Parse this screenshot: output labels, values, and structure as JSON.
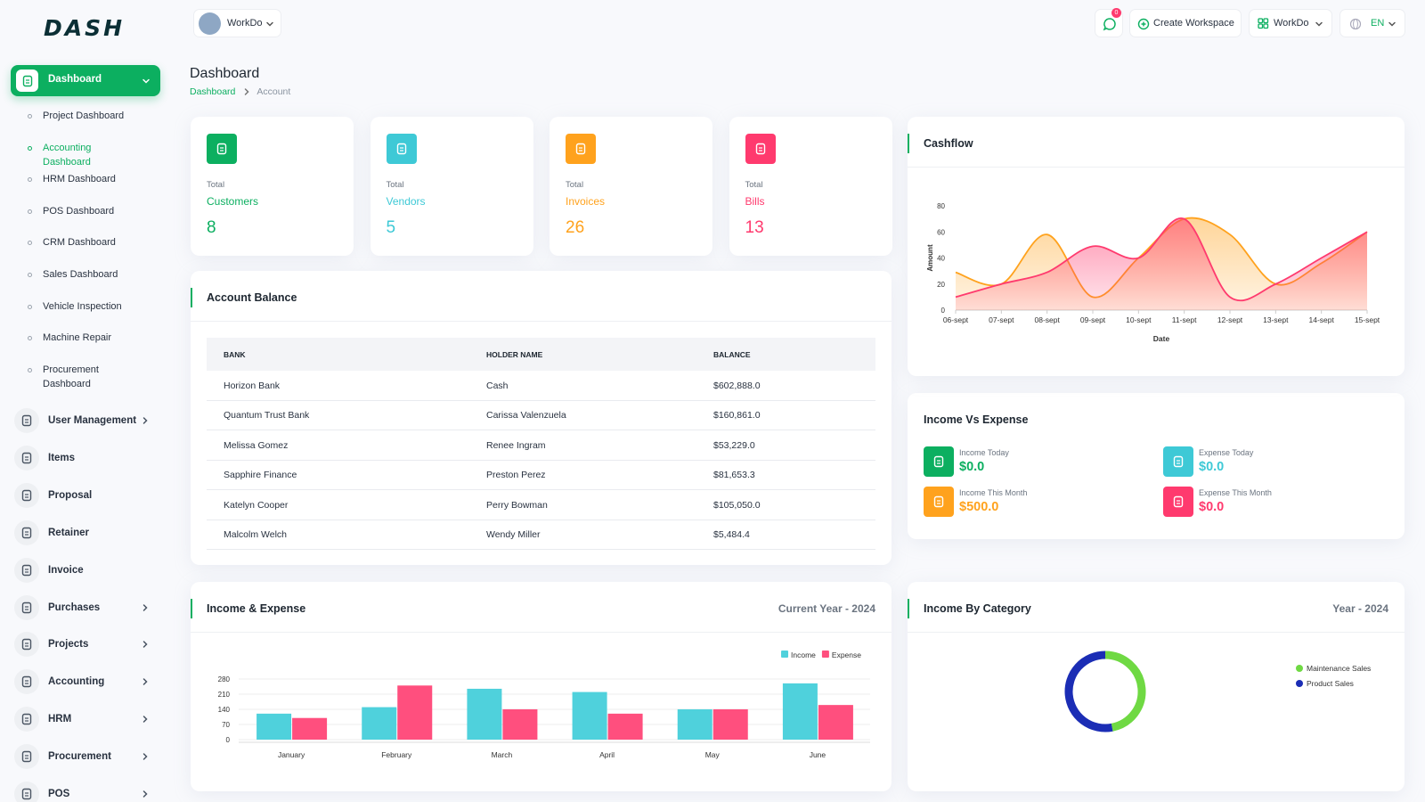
{
  "brand": "DASH",
  "header": {
    "workspace": "WorkDo",
    "notifications": 0,
    "create_workspace": "Create Workspace",
    "workspace_menu": "WorkDo",
    "language": "EN"
  },
  "sidebar": {
    "menu": [
      {
        "label": "Dashboard",
        "active": true,
        "expandable": true,
        "children": [
          {
            "label": "Project Dashboard"
          },
          {
            "label": "Accounting Dashboard",
            "active": true
          },
          {
            "label": "HRM Dashboard"
          },
          {
            "label": "POS Dashboard"
          },
          {
            "label": "CRM Dashboard"
          },
          {
            "label": "Sales Dashboard"
          },
          {
            "label": "Vehicle Inspection"
          },
          {
            "label": "Machine Repair"
          },
          {
            "label": "Procurement Dashboard"
          }
        ]
      },
      {
        "label": "User Management",
        "expandable": true
      },
      {
        "label": "Items"
      },
      {
        "label": "Proposal"
      },
      {
        "label": "Retainer"
      },
      {
        "label": "Invoice"
      },
      {
        "label": "Purchases",
        "expandable": true
      },
      {
        "label": "Projects",
        "expandable": true
      },
      {
        "label": "Accounting",
        "expandable": true
      },
      {
        "label": "HRM",
        "expandable": true
      },
      {
        "label": "Procurement",
        "expandable": true
      },
      {
        "label": "POS",
        "expandable": true
      }
    ]
  },
  "page": {
    "title": "Dashboard",
    "breadcrumb": [
      "Dashboard",
      "Account"
    ]
  },
  "stats": [
    {
      "caption": "Total",
      "label": "Customers",
      "value": 8,
      "color": "#0caf60"
    },
    {
      "caption": "Total",
      "label": "Vendors",
      "value": 5,
      "color": "#3ec9d6"
    },
    {
      "caption": "Total",
      "label": "Invoices",
      "value": 26,
      "color": "#ffa21d"
    },
    {
      "caption": "Total",
      "label": "Bills",
      "value": 13,
      "color": "#ff3a6e"
    }
  ],
  "account_balance": {
    "title": "Account Balance",
    "columns": [
      "BANK",
      "HOLDER NAME",
      "BALANCE"
    ],
    "rows": [
      [
        "Horizon Bank",
        "Cash",
        "$602,888.0"
      ],
      [
        "Quantum Trust Bank",
        "Carissa Valenzuela",
        "$160,861.0"
      ],
      [
        "Melissa Gomez",
        "Renee Ingram",
        "$53,229.0"
      ],
      [
        "Sapphire Finance",
        "Preston Perez",
        "$81,653.3"
      ],
      [
        "Katelyn Cooper",
        "Perry Bowman",
        "$105,050.0"
      ],
      [
        "Malcolm Welch",
        "Wendy Miller",
        "$5,484.4"
      ]
    ]
  },
  "income_vs_expense": {
    "title": "Income Vs Expense",
    "items": [
      {
        "label": "Income Today",
        "value": "$0.0",
        "color": "#0caf60"
      },
      {
        "label": "Expense Today",
        "value": "$0.0",
        "color": "#3ec9d6"
      },
      {
        "label": "Income This Month",
        "value": "$500.0",
        "color": "#ffa21d"
      },
      {
        "label": "Expense This Month",
        "value": "$0.0",
        "color": "#ff3a6e"
      }
    ]
  },
  "chart_data": [
    {
      "type": "area",
      "title": "Cashflow",
      "categories": [
        "06-sept",
        "07-sept",
        "08-sept",
        "09-sept",
        "10-sept",
        "11-sept",
        "12-sept",
        "13-sept",
        "14-sept",
        "15-sept"
      ],
      "series": [
        {
          "color": "#ffa21d",
          "values": [
            29,
            20,
            58,
            10,
            40,
            70,
            58,
            20,
            36,
            60
          ]
        },
        {
          "color": "#ff3a6e",
          "values": [
            10,
            20,
            29,
            49,
            40,
            70,
            10,
            20,
            40,
            60
          ]
        }
      ],
      "ylim": [
        0,
        80
      ],
      "yticks": [
        0,
        20,
        40,
        60,
        80
      ],
      "xlabel": "Date",
      "ylabel": "Amount",
      "grid": false
    },
    {
      "type": "bar",
      "title": "Income & Expense",
      "subtitle": "Current Year - 2024",
      "categories": [
        "January",
        "February",
        "March",
        "April",
        "May",
        "June"
      ],
      "series": [
        {
          "name": "Income",
          "color": "#4fd1dc",
          "values": [
            120,
            150,
            235,
            220,
            140,
            260
          ]
        },
        {
          "name": "Expense",
          "color": "#ff4f7e",
          "values": [
            100,
            250,
            140,
            120,
            140,
            160
          ]
        }
      ],
      "ylim": [
        0,
        280
      ],
      "yticks": [
        0,
        70,
        140,
        210,
        280
      ],
      "grid": true,
      "legend": "top-right"
    },
    {
      "type": "donut",
      "title": "Income By Category",
      "subtitle": "Year - 2024",
      "categories": [
        "Maintenance Sales",
        "Product Sales"
      ],
      "values": [
        47,
        53
      ],
      "colors": [
        "#6fd943",
        "#1b2db5"
      ],
      "legend": "right"
    }
  ]
}
